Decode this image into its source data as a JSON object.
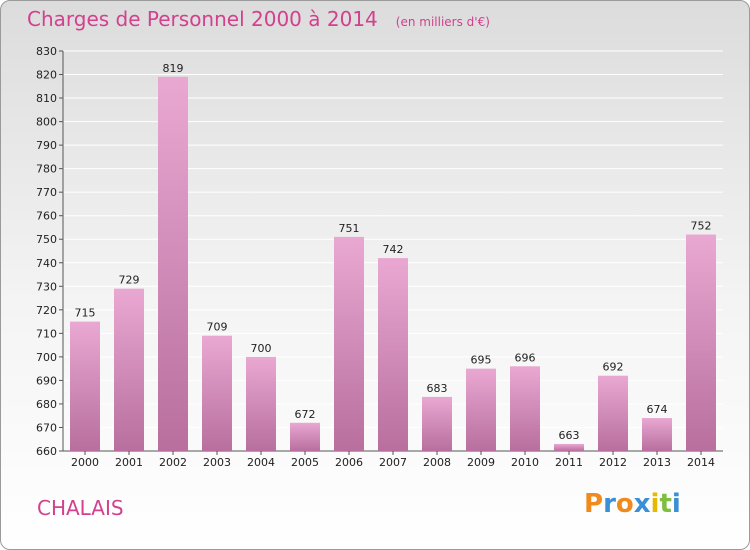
{
  "title": "Charges de Personnel 2000 à 2014",
  "subtitle": "(en milliers d'€)",
  "commune": "CHALAIS",
  "logo": {
    "letters": [
      "P",
      "r",
      "o",
      "x",
      "i",
      "t",
      "i"
    ],
    "colors": [
      "#f08a1c",
      "#3a8fd6",
      "#f08a1c",
      "#3a8fd6",
      "#e6b800",
      "#7fbf3f",
      "#3a8fd6"
    ]
  },
  "colors": {
    "accent": "#d2408e",
    "bar_top": "#e9a8d2",
    "bar_bottom": "#b86f9e",
    "grid": "#ffffff"
  },
  "chart_data": {
    "type": "bar",
    "categories": [
      "2000",
      "2001",
      "2002",
      "2003",
      "2004",
      "2005",
      "2006",
      "2007",
      "2008",
      "2009",
      "2010",
      "2011",
      "2012",
      "2013",
      "2014"
    ],
    "values": [
      715,
      729,
      819,
      709,
      700,
      672,
      751,
      742,
      683,
      695,
      696,
      663,
      692,
      674,
      752
    ],
    "ylim": [
      660,
      830
    ],
    "yticks": [
      660,
      670,
      680,
      690,
      700,
      710,
      720,
      730,
      740,
      750,
      760,
      770,
      780,
      790,
      800,
      810,
      820,
      830
    ],
    "grid": true,
    "xlabel": "",
    "ylabel": ""
  }
}
